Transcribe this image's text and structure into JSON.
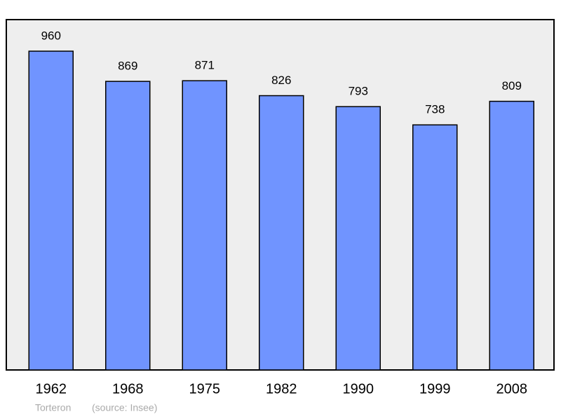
{
  "chart_data": {
    "type": "bar",
    "categories": [
      "1962",
      "1968",
      "1975",
      "1982",
      "1990",
      "1999",
      "2008"
    ],
    "values": [
      960,
      869,
      871,
      826,
      793,
      738,
      809
    ],
    "color": "#7094ff",
    "ylim": [
      0,
      1055
    ],
    "caption": "Torteron",
    "source": "(source: Insee)"
  }
}
